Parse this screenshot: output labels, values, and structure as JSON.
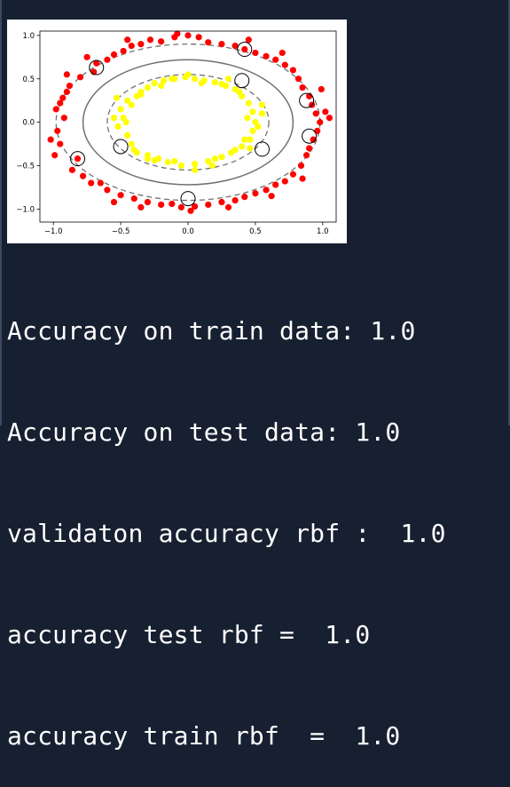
{
  "chart_data": {
    "type": "scatter",
    "xlim": [
      -1.1,
      1.1
    ],
    "ylim": [
      -1.15,
      1.05
    ],
    "xticks": [
      "−1.0",
      "−0.5",
      "0.0",
      "0.5",
      "1.0"
    ],
    "yticks": [
      "1.0",
      "0.5",
      "0.0",
      "−0.5",
      "−1.0"
    ],
    "xtick_values": [
      -1.0,
      -0.5,
      0.0,
      0.5,
      1.0
    ],
    "ytick_values": [
      1.0,
      0.5,
      0.0,
      -0.5,
      -1.0
    ],
    "grid": false,
    "colors": {
      "outer_class": "#ff0000",
      "inner_class": "#ffff00",
      "decision_boundary": "#707070",
      "margin": "#707070",
      "support_vector_ring": "#000000"
    },
    "outer_class_points": [
      [
        -0.93,
        0.28
      ],
      [
        -0.95,
        0.22
      ],
      [
        -0.9,
        0.35
      ],
      [
        -0.98,
        0.15
      ],
      [
        -0.92,
        0.05
      ],
      [
        -0.97,
        -0.1
      ],
      [
        -0.95,
        -0.25
      ],
      [
        -0.99,
        -0.38
      ],
      [
        -0.86,
        -0.55
      ],
      [
        -0.82,
        -0.42
      ],
      [
        -0.78,
        -0.62
      ],
      [
        -0.72,
        -0.7
      ],
      [
        -0.68,
        0.68
      ],
      [
        -0.7,
        0.58
      ],
      [
        -0.6,
        0.72
      ],
      [
        -0.55,
        0.78
      ],
      [
        -0.48,
        0.82
      ],
      [
        -0.42,
        0.88
      ],
      [
        -0.35,
        0.9
      ],
      [
        -0.28,
        0.95
      ],
      [
        -0.2,
        0.93
      ],
      [
        -0.1,
        0.98
      ],
      [
        0.0,
        1.0
      ],
      [
        0.08,
        0.98
      ],
      [
        0.15,
        0.92
      ],
      [
        0.25,
        0.9
      ],
      [
        0.35,
        0.88
      ],
      [
        0.42,
        0.84
      ],
      [
        0.5,
        0.8
      ],
      [
        0.58,
        0.76
      ],
      [
        0.65,
        0.72
      ],
      [
        0.72,
        0.66
      ],
      [
        0.78,
        0.6
      ],
      [
        0.82,
        0.5
      ],
      [
        0.85,
        0.4
      ],
      [
        0.9,
        0.3
      ],
      [
        0.92,
        0.2
      ],
      [
        0.95,
        0.1
      ],
      [
        0.98,
        0.0
      ],
      [
        0.96,
        -0.1
      ],
      [
        0.93,
        -0.2
      ],
      [
        0.9,
        -0.3
      ],
      [
        0.88,
        -0.38
      ],
      [
        0.84,
        -0.5
      ],
      [
        0.78,
        -0.6
      ],
      [
        0.72,
        -0.68
      ],
      [
        0.65,
        -0.72
      ],
      [
        0.58,
        -0.78
      ],
      [
        0.5,
        -0.82
      ],
      [
        0.42,
        -0.86
      ],
      [
        0.35,
        -0.9
      ],
      [
        0.25,
        -0.92
      ],
      [
        0.15,
        -0.95
      ],
      [
        0.05,
        -0.97
      ],
      [
        -0.05,
        -0.98
      ],
      [
        -0.12,
        -0.94
      ],
      [
        -0.2,
        -0.95
      ],
      [
        -0.3,
        -0.92
      ],
      [
        -0.4,
        -0.88
      ],
      [
        -0.5,
        -0.84
      ],
      [
        -0.6,
        -0.78
      ],
      [
        -0.65,
        -0.7
      ],
      [
        -0.88,
        0.42
      ],
      [
        -0.8,
        0.52
      ],
      [
        1.02,
        0.12
      ],
      [
        1.05,
        0.05
      ],
      [
        0.99,
        0.38
      ],
      [
        -1.02,
        -0.2
      ],
      [
        0.02,
        -1.02
      ],
      [
        -0.08,
        1.02
      ],
      [
        0.62,
        -0.85
      ],
      [
        -0.55,
        -0.92
      ],
      [
        0.7,
        0.8
      ],
      [
        -0.75,
        0.75
      ],
      [
        0.3,
        -0.98
      ],
      [
        -0.35,
        -0.98
      ],
      [
        0.45,
        0.95
      ],
      [
        -0.45,
        0.95
      ],
      [
        0.85,
        -0.65
      ],
      [
        -0.9,
        0.55
      ]
    ],
    "inner_class_points": [
      [
        -0.5,
        0.15
      ],
      [
        -0.48,
        0.05
      ],
      [
        -0.52,
        -0.05
      ],
      [
        -0.45,
        -0.15
      ],
      [
        -0.42,
        -0.25
      ],
      [
        -0.38,
        0.3
      ],
      [
        -0.35,
        0.35
      ],
      [
        -0.3,
        0.4
      ],
      [
        -0.25,
        0.45
      ],
      [
        -0.18,
        0.48
      ],
      [
        -0.1,
        0.5
      ],
      [
        -0.02,
        0.52
      ],
      [
        0.05,
        0.5
      ],
      [
        0.12,
        0.48
      ],
      [
        0.2,
        0.46
      ],
      [
        0.28,
        0.42
      ],
      [
        0.35,
        0.38
      ],
      [
        0.4,
        0.3
      ],
      [
        0.45,
        0.22
      ],
      [
        0.48,
        0.12
      ],
      [
        0.5,
        0.0
      ],
      [
        0.48,
        -0.1
      ],
      [
        0.46,
        -0.2
      ],
      [
        0.4,
        -0.28
      ],
      [
        0.32,
        -0.35
      ],
      [
        0.25,
        -0.4
      ],
      [
        0.15,
        -0.45
      ],
      [
        0.05,
        -0.48
      ],
      [
        -0.05,
        -0.5
      ],
      [
        -0.15,
        -0.46
      ],
      [
        -0.22,
        -0.42
      ],
      [
        -0.3,
        -0.38
      ],
      [
        -0.4,
        -0.32
      ],
      [
        -0.55,
        0.05
      ],
      [
        -0.45,
        0.25
      ],
      [
        0.55,
        0.1
      ],
      [
        0.52,
        -0.05
      ],
      [
        0.3,
        0.5
      ],
      [
        -0.3,
        -0.42
      ],
      [
        0.0,
        0.55
      ],
      [
        0.05,
        -0.55
      ],
      [
        -0.42,
        0.2
      ],
      [
        0.42,
        -0.2
      ],
      [
        0.38,
        0.35
      ],
      [
        -0.38,
        -0.35
      ],
      [
        0.1,
        0.45
      ],
      [
        -0.1,
        -0.45
      ],
      [
        0.2,
        -0.42
      ],
      [
        -0.2,
        0.42
      ],
      [
        0.44,
        0.05
      ],
      [
        -0.46,
        0.0
      ],
      [
        0.25,
        0.44
      ],
      [
        -0.25,
        -0.44
      ],
      [
        0.35,
        -0.32
      ],
      [
        -0.35,
        0.32
      ],
      [
        0.55,
        0.2
      ],
      [
        -0.53,
        0.28
      ],
      [
        0.46,
        -0.3
      ],
      [
        -0.12,
        0.5
      ],
      [
        0.18,
        -0.5
      ]
    ],
    "support_vectors": [
      [
        -0.68,
        0.63
      ],
      [
        0.42,
        0.84
      ],
      [
        0.88,
        0.25
      ],
      [
        0.9,
        -0.16
      ],
      [
        0.55,
        -0.31
      ],
      [
        0.4,
        0.48
      ],
      [
        -0.5,
        -0.28
      ],
      [
        -0.82,
        -0.42
      ],
      [
        0.0,
        -0.88
      ]
    ],
    "decision_boundary": {
      "rx": 0.78,
      "ry": 0.72
    },
    "margin_outer": {
      "rx": 0.98,
      "ry": 0.9
    },
    "margin_inner": {
      "rx": 0.6,
      "ry": 0.55
    }
  },
  "output": {
    "lines": [
      "Accuracy on train data: 1.0",
      "Accuracy on test data: 1.0",
      "validaton accuracy rbf :  1.0",
      "accuracy test rbf =  1.0",
      "accuracy train rbf  =  1.0"
    ]
  }
}
